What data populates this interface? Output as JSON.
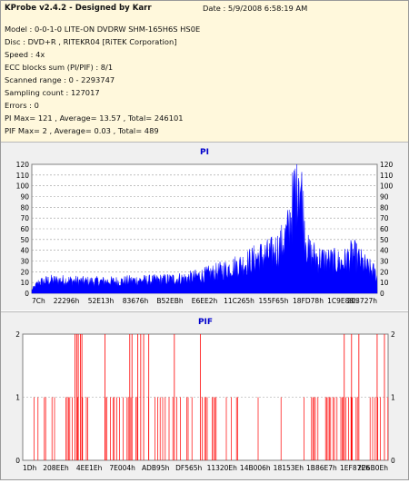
{
  "header": {
    "title": "KProbe v2.4.2 - Designed by Karr",
    "date": "Date : 5/9/2008 6:58:19 AM"
  },
  "info_lines": [
    "Model : 0-0-1-0 LITE-ON DVDRW SHM-165H6S HS0E",
    "Disc : DVD+R , RITEKR04 [RiTEK Corporation]",
    "Speed : 4x",
    "ECC blocks sum (PI/PIF) : 8/1",
    "Scanned range : 0 - 2293747",
    "Sampling count : 127017",
    "Errors : 0",
    "PI Max= 121 , Average= 13.57 , Total= 246101",
    "PIF Max= 2 , Average= 0.03 , Total= 489"
  ],
  "colors": {
    "info_bg": "#fff8dc",
    "panel_bg": "#f0f0f0",
    "data": "#0000ff",
    "pif": "#ff0000",
    "title": "#0000cc",
    "axis_text": "#000000"
  },
  "chart_data": [
    {
      "type": "area",
      "title": "PI",
      "ylim": [
        0,
        120
      ],
      "yticks": [
        0,
        10,
        20,
        30,
        40,
        50,
        60,
        70,
        80,
        90,
        100,
        110,
        120
      ],
      "y2ticks": [
        0,
        10,
        20,
        30,
        40,
        50,
        60,
        70,
        80,
        90,
        100,
        110,
        120
      ],
      "xticks": [
        "7Ch",
        "22296h",
        "52E13h",
        "83676h",
        "B52EBh",
        "E6EE2h",
        "11C265h",
        "155F65h",
        "18FD78h",
        "1C9E88h",
        "203727h"
      ],
      "grid": true,
      "series": [
        {
          "profile": [
            [
              0.0,
              3
            ],
            [
              0.02,
              10
            ],
            [
              0.05,
              12
            ],
            [
              0.1,
              12
            ],
            [
              0.15,
              11
            ],
            [
              0.2,
              11
            ],
            [
              0.25,
              11
            ],
            [
              0.3,
              12
            ],
            [
              0.35,
              12
            ],
            [
              0.4,
              13
            ],
            [
              0.45,
              14
            ],
            [
              0.5,
              17
            ],
            [
              0.54,
              20
            ],
            [
              0.58,
              24
            ],
            [
              0.62,
              28
            ],
            [
              0.66,
              34
            ],
            [
              0.69,
              36
            ],
            [
              0.72,
              43
            ],
            [
              0.74,
              55
            ],
            [
              0.755,
              80
            ],
            [
              0.765,
              100
            ],
            [
              0.772,
              121
            ],
            [
              0.78,
              95
            ],
            [
              0.79,
              60
            ],
            [
              0.8,
              38
            ],
            [
              0.83,
              32
            ],
            [
              0.86,
              30
            ],
            [
              0.88,
              29
            ],
            [
              0.9,
              28
            ],
            [
              0.93,
              36
            ],
            [
              0.95,
              30
            ],
            [
              0.97,
              24
            ],
            [
              0.99,
              20
            ],
            [
              1.0,
              15
            ]
          ]
        }
      ]
    },
    {
      "type": "bar",
      "title": "PIF",
      "ylim": [
        0,
        2
      ],
      "yticks": [
        0,
        1,
        2
      ],
      "y2ticks": [
        0,
        1,
        2
      ],
      "xticks": [
        "1Dh",
        "208EEh",
        "4EE1Eh",
        "7E004h",
        "ADB95h",
        "DF565h",
        "11320Eh",
        "14B006h",
        "18153Eh",
        "1B86E7h",
        "1EF87Eh",
        "226B0Eh"
      ],
      "grid": true,
      "series": [
        {
          "peaks": [
            0.143,
            0.148,
            0.152,
            0.158,
            0.162,
            0.225,
            0.293,
            0.299,
            0.315,
            0.323,
            0.331,
            0.345,
            0.415,
            0.486,
            0.88,
            0.9,
            0.92,
            0.97,
            0.99
          ],
          "ones_density": [
            [
              0.0,
              0.04
            ],
            [
              0.06,
              0.35
            ],
            [
              0.2,
              0.3
            ],
            [
              0.4,
              0.25
            ],
            [
              0.55,
              0.15
            ],
            [
              0.62,
              0.1
            ],
            [
              0.7,
              0.05
            ],
            [
              0.85,
              0.45
            ],
            [
              1.0,
              0.5
            ]
          ]
        }
      ]
    }
  ]
}
